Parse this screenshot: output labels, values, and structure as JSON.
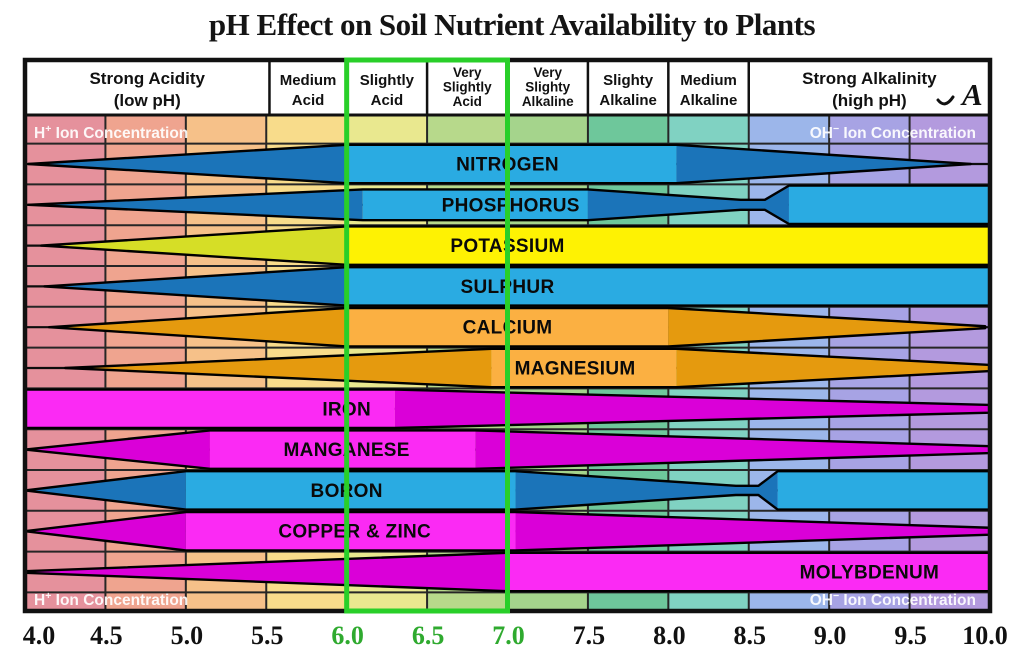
{
  "title": "pH Effect on Soil Nutrient Availability to Plants",
  "logo_glyph": "A",
  "ion_labels": {
    "top_left": {
      "pre": "H",
      "sup": "+",
      "post": " Ion Concentration"
    },
    "top_right": {
      "pre": "OH",
      "sup": "−",
      "post": " Ion Concentration"
    },
    "bottom_left": {
      "pre": "H",
      "sup": "+",
      "post": " Ion Concentration"
    },
    "bottom_right": {
      "pre": "OH",
      "sup": "−",
      "post": " Ion Concentration"
    }
  },
  "chart_data": {
    "type": "area",
    "title": "pH Effect on Soil Nutrient Availability to Plants",
    "x_axis": {
      "label": "pH",
      "min": 4.0,
      "max": 10.0,
      "tick_step": 0.5,
      "ticks": [
        {
          "label": "4.0",
          "ph": 4.0,
          "green": false
        },
        {
          "label": "4.5",
          "ph": 4.5,
          "green": false
        },
        {
          "label": "5.0",
          "ph": 5.0,
          "green": false
        },
        {
          "label": "5.5",
          "ph": 5.5,
          "green": false
        },
        {
          "label": "6.0",
          "ph": 6.0,
          "green": true
        },
        {
          "label": "6.5",
          "ph": 6.5,
          "green": true
        },
        {
          "label": "7.0",
          "ph": 7.0,
          "green": true
        },
        {
          "label": "7.5",
          "ph": 7.5,
          "green": false
        },
        {
          "label": "8.0",
          "ph": 8.0,
          "green": false
        },
        {
          "label": "8.5",
          "ph": 8.5,
          "green": false
        },
        {
          "label": "9.0",
          "ph": 9.0,
          "green": false
        },
        {
          "label": "9.5",
          "ph": 9.5,
          "green": false
        },
        {
          "label": "10.0",
          "ph": 10.0,
          "green": false
        }
      ]
    },
    "highlight_range": {
      "from": 6.0,
      "to": 7.0
    },
    "header_zones": [
      {
        "lines": [
          "Strong Acidity",
          "(low pH)"
        ],
        "from": 4.0,
        "to": 5.52
      },
      {
        "lines": [
          "Medium",
          "Acid"
        ],
        "from": 5.52,
        "to": 6.0
      },
      {
        "lines": [
          "Slightly",
          "Acid"
        ],
        "from": 6.0,
        "to": 6.5
      },
      {
        "lines": [
          "Very",
          "Slightly",
          "Acid"
        ],
        "from": 6.5,
        "to": 7.0
      },
      {
        "lines": [
          "Very",
          "Slighty",
          "Alkaline"
        ],
        "from": 7.0,
        "to": 7.5
      },
      {
        "lines": [
          "Slighty",
          "Alkaline"
        ],
        "from": 7.5,
        "to": 8.0
      },
      {
        "lines": [
          "Medium",
          "Alkaline"
        ],
        "from": 8.0,
        "to": 8.5
      },
      {
        "lines": [
          "Strong Alkalinity",
          "(high pH)"
        ],
        "from": 8.5,
        "to": 10.0
      }
    ],
    "background_columns": [
      {
        "from": 4.0,
        "to": 4.5,
        "color": "#e5919c"
      },
      {
        "from": 4.5,
        "to": 5.0,
        "color": "#efa48f"
      },
      {
        "from": 5.0,
        "to": 5.5,
        "color": "#f6c189"
      },
      {
        "from": 5.5,
        "to": 6.0,
        "color": "#f8dc8b"
      },
      {
        "from": 6.0,
        "to": 6.5,
        "color": "#e9e88f"
      },
      {
        "from": 6.5,
        "to": 7.0,
        "color": "#b7d98b"
      },
      {
        "from": 7.0,
        "to": 7.5,
        "color": "#a5d48c"
      },
      {
        "from": 7.5,
        "to": 8.0,
        "color": "#6ec79b"
      },
      {
        "from": 8.0,
        "to": 8.5,
        "color": "#80d2c2"
      },
      {
        "from": 8.5,
        "to": 9.0,
        "color": "#9cb6ea"
      },
      {
        "from": 9.0,
        "to": 9.5,
        "color": "#a7a3e4"
      },
      {
        "from": 9.5,
        "to": 10.0,
        "color": "#b39ade"
      }
    ],
    "nutrients": [
      {
        "name": "NITROGEN",
        "color": "blue",
        "label_ph": 7.0,
        "profile": [
          [
            4.02,
            0
          ],
          [
            6.0,
            1
          ],
          [
            8.05,
            1
          ],
          [
            9.88,
            0
          ]
        ],
        "bright_ranges": [
          [
            6.0,
            8.05
          ]
        ]
      },
      {
        "name": "PHOSPHORUS",
        "color": "blue",
        "label_ph": 7.02,
        "profile": [
          [
            4.02,
            0
          ],
          [
            6.1,
            0.8
          ],
          [
            7.5,
            0.8
          ],
          [
            8.45,
            0.26
          ],
          [
            8.6,
            0.26
          ],
          [
            8.75,
            1
          ],
          [
            10,
            1
          ]
        ],
        "bright_ranges": [
          [
            6.1,
            7.5
          ],
          [
            8.75,
            10
          ]
        ]
      },
      {
        "name": "POTASSIUM",
        "color": "yellow",
        "label_ph": 7.0,
        "profile": [
          [
            4.1,
            0
          ],
          [
            6.0,
            1
          ],
          [
            10,
            1
          ]
        ],
        "bright_ranges": [
          [
            6.0,
            10
          ]
        ]
      },
      {
        "name": "SULPHUR",
        "color": "blue",
        "label_ph": 7.0,
        "profile": [
          [
            4.12,
            0
          ],
          [
            6.0,
            1
          ],
          [
            10,
            1
          ]
        ],
        "bright_ranges": [
          [
            6.0,
            10
          ]
        ]
      },
      {
        "name": "CALCIUM",
        "color": "orange",
        "label_ph": 7.0,
        "profile": [
          [
            4.15,
            0
          ],
          [
            6.0,
            1
          ],
          [
            8.0,
            1
          ],
          [
            9.97,
            0.05
          ]
        ],
        "bright_ranges": [
          [
            6.0,
            8.0
          ]
        ]
      },
      {
        "name": "MAGNESIUM",
        "color": "orange",
        "label_ph": 7.42,
        "profile": [
          [
            4.25,
            0
          ],
          [
            6.9,
            1
          ],
          [
            8.05,
            1
          ],
          [
            10,
            0.16
          ]
        ],
        "bright_ranges": [
          [
            6.9,
            8.05
          ]
        ]
      },
      {
        "name": "IRON",
        "color": "magenta",
        "label_ph": 6.0,
        "profile": [
          [
            4.0,
            1
          ],
          [
            6.3,
            1
          ],
          [
            10,
            0.2
          ]
        ],
        "bright_ranges": [
          [
            4.0,
            6.3
          ]
        ]
      },
      {
        "name": "MANGANESE",
        "color": "magenta",
        "label_ph": 6.0,
        "profile": [
          [
            4.0,
            0
          ],
          [
            5.15,
            1
          ],
          [
            6.8,
            1
          ],
          [
            10,
            0.18
          ]
        ],
        "bright_ranges": [
          [
            5.15,
            6.8
          ]
        ]
      },
      {
        "name": "BORON",
        "color": "blue",
        "label_ph": 6.0,
        "profile": [
          [
            4.0,
            0
          ],
          [
            5.0,
            1
          ],
          [
            7.05,
            1
          ],
          [
            8.42,
            0.24
          ],
          [
            8.56,
            0.24
          ],
          [
            8.68,
            1
          ],
          [
            10,
            1
          ]
        ],
        "bright_ranges": [
          [
            5.0,
            7.05
          ],
          [
            8.68,
            10
          ]
        ]
      },
      {
        "name": "COPPER & ZINC",
        "color": "magenta",
        "label_ph": 6.05,
        "profile": [
          [
            4.0,
            0
          ],
          [
            5.0,
            1
          ],
          [
            7.05,
            1
          ],
          [
            10,
            0.18
          ]
        ],
        "bright_ranges": [
          [
            5.0,
            7.05
          ]
        ]
      },
      {
        "name": "MOLYBDENUM",
        "color": "magenta",
        "label_ph": 9.25,
        "profile": [
          [
            4.0,
            0.04
          ],
          [
            7.0,
            1
          ],
          [
            10,
            1
          ]
        ],
        "bright_ranges": [
          [
            7.0,
            10
          ]
        ]
      }
    ],
    "colors": {
      "tones": {
        "blue": {
          "dark": "#1b74b9",
          "bright": "#2aabe2"
        },
        "yellow": {
          "dark": "#d6de26",
          "bright": "#fef203"
        },
        "orange": {
          "dark": "#e59a0e",
          "bright": "#fbb042"
        },
        "magenta": {
          "dark": "#da00d8",
          "bright": "#fb2af4"
        }
      },
      "grid": "#262626",
      "border": "#111111",
      "green_box": "#29cf29",
      "green_text": "#2faa2f",
      "axis_text": "#111111",
      "band_label": "#0a0a0a",
      "ion_text": "#ffffff"
    }
  }
}
